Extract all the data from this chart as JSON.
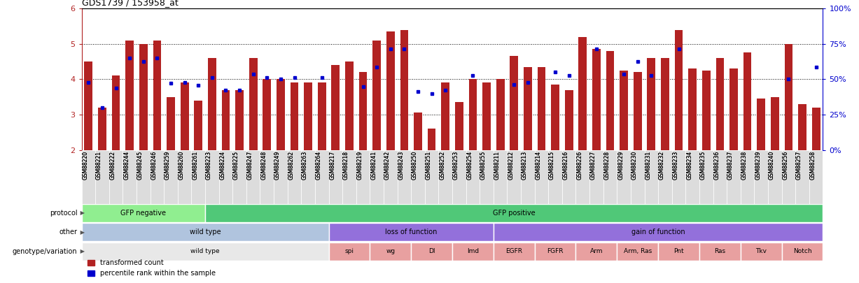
{
  "title": "GDS1739 / 153958_at",
  "ylim": [
    2,
    6
  ],
  "yticks": [
    2,
    3,
    4,
    5,
    6
  ],
  "right_yticks": [
    0,
    25,
    50,
    75,
    100
  ],
  "samples": [
    "GSM88220",
    "GSM88221",
    "GSM88222",
    "GSM88244",
    "GSM88245",
    "GSM88246",
    "GSM88259",
    "GSM88260",
    "GSM88261",
    "GSM88223",
    "GSM88224",
    "GSM88225",
    "GSM88247",
    "GSM88248",
    "GSM88249",
    "GSM88262",
    "GSM88263",
    "GSM88264",
    "GSM88217",
    "GSM88218",
    "GSM88219",
    "GSM88241",
    "GSM88242",
    "GSM88243",
    "GSM88250",
    "GSM88251",
    "GSM88252",
    "GSM88253",
    "GSM88254",
    "GSM88255",
    "GSM88211",
    "GSM88212",
    "GSM88213",
    "GSM88214",
    "GSM88215",
    "GSM88216",
    "GSM88226",
    "GSM88227",
    "GSM88228",
    "GSM88229",
    "GSM88230",
    "GSM88231",
    "GSM88232",
    "GSM88233",
    "GSM88234",
    "GSM88235",
    "GSM88236",
    "GSM88237",
    "GSM88238",
    "GSM88239",
    "GSM88240",
    "GSM88256",
    "GSM88257",
    "GSM88258"
  ],
  "bar_values": [
    4.5,
    3.2,
    4.1,
    5.1,
    5.0,
    5.1,
    3.5,
    3.9,
    3.4,
    4.6,
    3.7,
    3.7,
    4.6,
    4.0,
    4.0,
    3.9,
    3.9,
    3.9,
    4.4,
    4.5,
    4.2,
    5.1,
    5.35,
    5.4,
    3.05,
    2.6,
    3.9,
    3.35,
    4.0,
    3.9,
    4.0,
    4.65,
    4.35,
    4.35,
    3.85,
    3.7,
    5.2,
    4.85,
    4.8,
    4.25,
    4.2,
    4.6,
    4.6,
    5.4,
    4.3,
    4.25,
    4.6,
    4.3,
    4.75,
    3.45,
    3.5,
    5.0,
    3.3,
    3.2
  ],
  "dot_values": [
    3.9,
    3.2,
    3.75,
    4.6,
    4.5,
    4.6,
    3.88,
    3.9,
    3.84,
    4.05,
    3.7,
    3.7,
    4.14,
    4.05,
    4.0,
    4.05,
    null,
    4.05,
    null,
    null,
    3.8,
    4.35,
    4.85,
    4.85,
    3.65,
    3.6,
    3.7,
    null,
    4.1,
    null,
    null,
    3.85,
    3.9,
    null,
    4.2,
    4.1,
    null,
    4.85,
    null,
    4.15,
    4.5,
    4.1,
    null,
    4.85,
    null,
    null,
    null,
    null,
    null,
    null,
    null,
    4.0,
    null,
    4.35
  ],
  "bar_color": "#B22222",
  "dot_color": "#0000CD",
  "protocol_row": [
    {
      "label": "GFP negative",
      "start": 0,
      "end": 9,
      "color": "#90EE90"
    },
    {
      "label": "GFP positive",
      "start": 9,
      "end": 54,
      "color": "#50C878"
    }
  ],
  "other_row": [
    {
      "label": "wild type",
      "start": 0,
      "end": 18,
      "color": "#B0C4DE"
    },
    {
      "label": "loss of function",
      "start": 18,
      "end": 30,
      "color": "#9370DB"
    },
    {
      "label": "gain of function",
      "start": 30,
      "end": 54,
      "color": "#9370DB"
    }
  ],
  "genotype_row": [
    {
      "label": "wild type",
      "start": 0,
      "end": 18,
      "color": "#E8E8E8"
    },
    {
      "label": "spi",
      "start": 18,
      "end": 21,
      "color": "#E8A0A0"
    },
    {
      "label": "wg",
      "start": 21,
      "end": 24,
      "color": "#E8A0A0"
    },
    {
      "label": "Dl",
      "start": 24,
      "end": 27,
      "color": "#E8A0A0"
    },
    {
      "label": "Imd",
      "start": 27,
      "end": 30,
      "color": "#E8A0A0"
    },
    {
      "label": "EGFR",
      "start": 30,
      "end": 33,
      "color": "#E8A0A0"
    },
    {
      "label": "FGFR",
      "start": 33,
      "end": 36,
      "color": "#E8A0A0"
    },
    {
      "label": "Arm",
      "start": 36,
      "end": 39,
      "color": "#E8A0A0"
    },
    {
      "label": "Arm, Ras",
      "start": 39,
      "end": 42,
      "color": "#E8A0A0"
    },
    {
      "label": "Pnt",
      "start": 42,
      "end": 45,
      "color": "#E8A0A0"
    },
    {
      "label": "Ras",
      "start": 45,
      "end": 48,
      "color": "#E8A0A0"
    },
    {
      "label": "Tkv",
      "start": 48,
      "end": 51,
      "color": "#E8A0A0"
    },
    {
      "label": "Notch",
      "start": 51,
      "end": 54,
      "color": "#E8A0A0"
    }
  ],
  "row_labels": [
    "protocol",
    "other",
    "genotype/variation"
  ],
  "legend_labels": [
    "transformed count",
    "percentile rank within the sample"
  ]
}
